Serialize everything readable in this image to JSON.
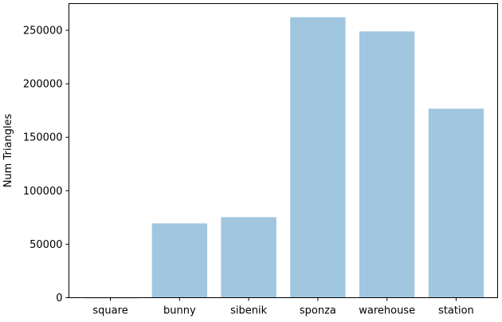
{
  "chart_data": {
    "type": "bar",
    "title": "",
    "xlabel": "",
    "ylabel": "Num Triangles",
    "categories": [
      "square",
      "bunny",
      "sibenik",
      "sponza",
      "warehouse",
      "station"
    ],
    "values": [
      2,
      69451,
      75284,
      262267,
      248986,
      176710
    ],
    "ylim": [
      0,
      275000
    ],
    "yticks": [
      0,
      50000,
      100000,
      150000,
      200000,
      250000
    ],
    "ytick_labels": [
      "0",
      "50000",
      "100000",
      "150000",
      "200000",
      "250000"
    ],
    "grid": false,
    "legend": "none",
    "bar_color": "#a1c6e0",
    "bar_opacity": 1
  }
}
